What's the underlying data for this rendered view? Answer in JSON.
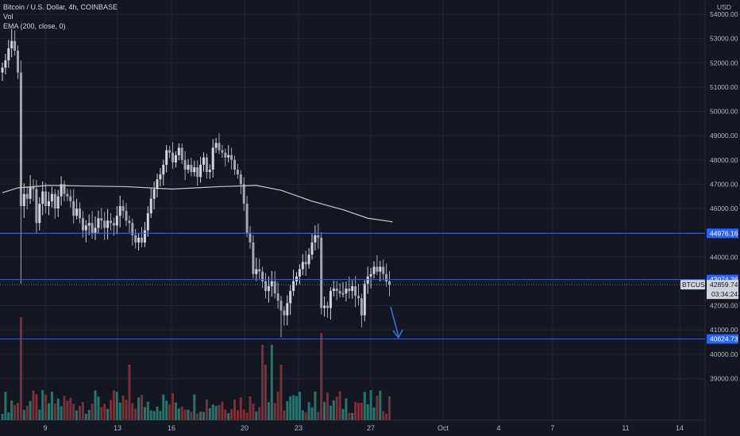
{
  "legend": {
    "title": "Bitcoin / U.S. Dollar, 4h, COINBASE",
    "vol": "Vol",
    "ema": "EMA (200, close, 0)"
  },
  "colors": {
    "background": "#131722",
    "grid": "#1f2433",
    "up": "#d1d4dc",
    "down": "#a3a6af",
    "vol_up": "#26756c",
    "vol_down": "#7a2f36",
    "hline": "#2962ff",
    "ema": "#c8c8c8",
    "arrow": "#2f6fe0"
  },
  "chart_data": {
    "type": "candlestick",
    "currency_label": "USD",
    "symbol_tag": "BTCUSD",
    "last_price_tag": "42859.74",
    "countdown_tag": "03:34:24",
    "ylim": [
      38200,
      54200
    ],
    "y_ticks": [
      "54000.00",
      "53000.00",
      "52000.00",
      "51000.00",
      "50000.00",
      "49000.00",
      "48000.00",
      "47000.00",
      "46000.00",
      "45000.00",
      "44000.00",
      "43000.00",
      "42000.00",
      "41000.00",
      "40000.00",
      "39000.00"
    ],
    "x_ticks": [
      "9",
      "13",
      "16",
      "20",
      "23",
      "27",
      "Oct",
      "4",
      "7",
      "11",
      "14"
    ],
    "horizontal_levels": [
      {
        "value": 44976.16,
        "label": "44976.16"
      },
      {
        "value": 43074.26,
        "label": "43074.26"
      },
      {
        "value": 40624.73,
        "label": "40624.73"
      }
    ],
    "candles": {
      "count": 126,
      "closes": [
        51800,
        52100,
        52600,
        52900,
        52500,
        51600,
        46100,
        46600,
        46400,
        46900,
        46800,
        45400,
        46200,
        46700,
        46100,
        46300,
        46600,
        46000,
        46500,
        47000,
        46600,
        46500,
        46300,
        45700,
        46000,
        45600,
        45100,
        45300,
        45400,
        45000,
        45200,
        45600,
        45500,
        45200,
        45500,
        45400,
        45300,
        45700,
        46100,
        45900,
        45500,
        45400,
        44900,
        44600,
        44800,
        44600,
        45100,
        45800,
        46400,
        46800,
        47200,
        47400,
        47800,
        48400,
        48300,
        47900,
        48200,
        48500,
        48000,
        47600,
        47800,
        47500,
        47700,
        47300,
        47800,
        48100,
        47500,
        47600,
        48500,
        48700,
        48400,
        48300,
        48100,
        48200,
        48000,
        47600,
        47400,
        47000,
        46200,
        45000,
        44600,
        43300,
        43500,
        43400,
        43000,
        42600,
        42800,
        43000,
        42500,
        42200,
        41800,
        41600,
        42100,
        42600,
        43000,
        43200,
        43500,
        43800,
        43700,
        44100,
        44600,
        44900,
        44800,
        41900,
        42000,
        41900,
        42600,
        42700,
        42600,
        42500,
        42500,
        42700,
        42600,
        42800,
        42400,
        42300,
        41600,
        42900,
        43200,
        43300,
        43600,
        43400,
        43600,
        43300,
        43000,
        42860
      ],
      "ema_200": [
        [
          0,
          46650
        ],
        [
          5,
          46850
        ],
        [
          15,
          46950
        ],
        [
          40,
          46900
        ],
        [
          55,
          46800
        ],
        [
          70,
          46900
        ],
        [
          82,
          46950
        ],
        [
          90,
          46750
        ],
        [
          100,
          46300
        ],
        [
          110,
          45950
        ],
        [
          118,
          45600
        ],
        [
          126,
          45450
        ]
      ],
      "volume_note": "volume histogram in lower pane"
    },
    "annotation": "blue downward arrow after last candle"
  }
}
